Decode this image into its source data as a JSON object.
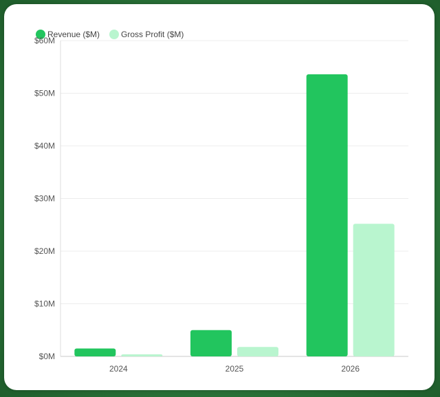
{
  "chart_data": {
    "type": "bar",
    "categories": [
      "2024",
      "2025",
      "2026"
    ],
    "series": [
      {
        "name": "Revenue ($M)",
        "values": [
          1.5,
          5.0,
          53.6
        ],
        "color": "#22c55e"
      },
      {
        "name": "Gross Profit ($M)",
        "values": [
          0.4,
          1.8,
          25.2
        ],
        "color": "#b9f5cf"
      }
    ],
    "ylim": [
      0,
      60
    ],
    "yticks": [
      0,
      10,
      20,
      30,
      40,
      50,
      60
    ],
    "ytick_labels": [
      "$0M",
      "$10M",
      "$20M",
      "$30M",
      "$40M",
      "$50M",
      "$60M"
    ],
    "legend_position": "top-left",
    "grid": true
  }
}
